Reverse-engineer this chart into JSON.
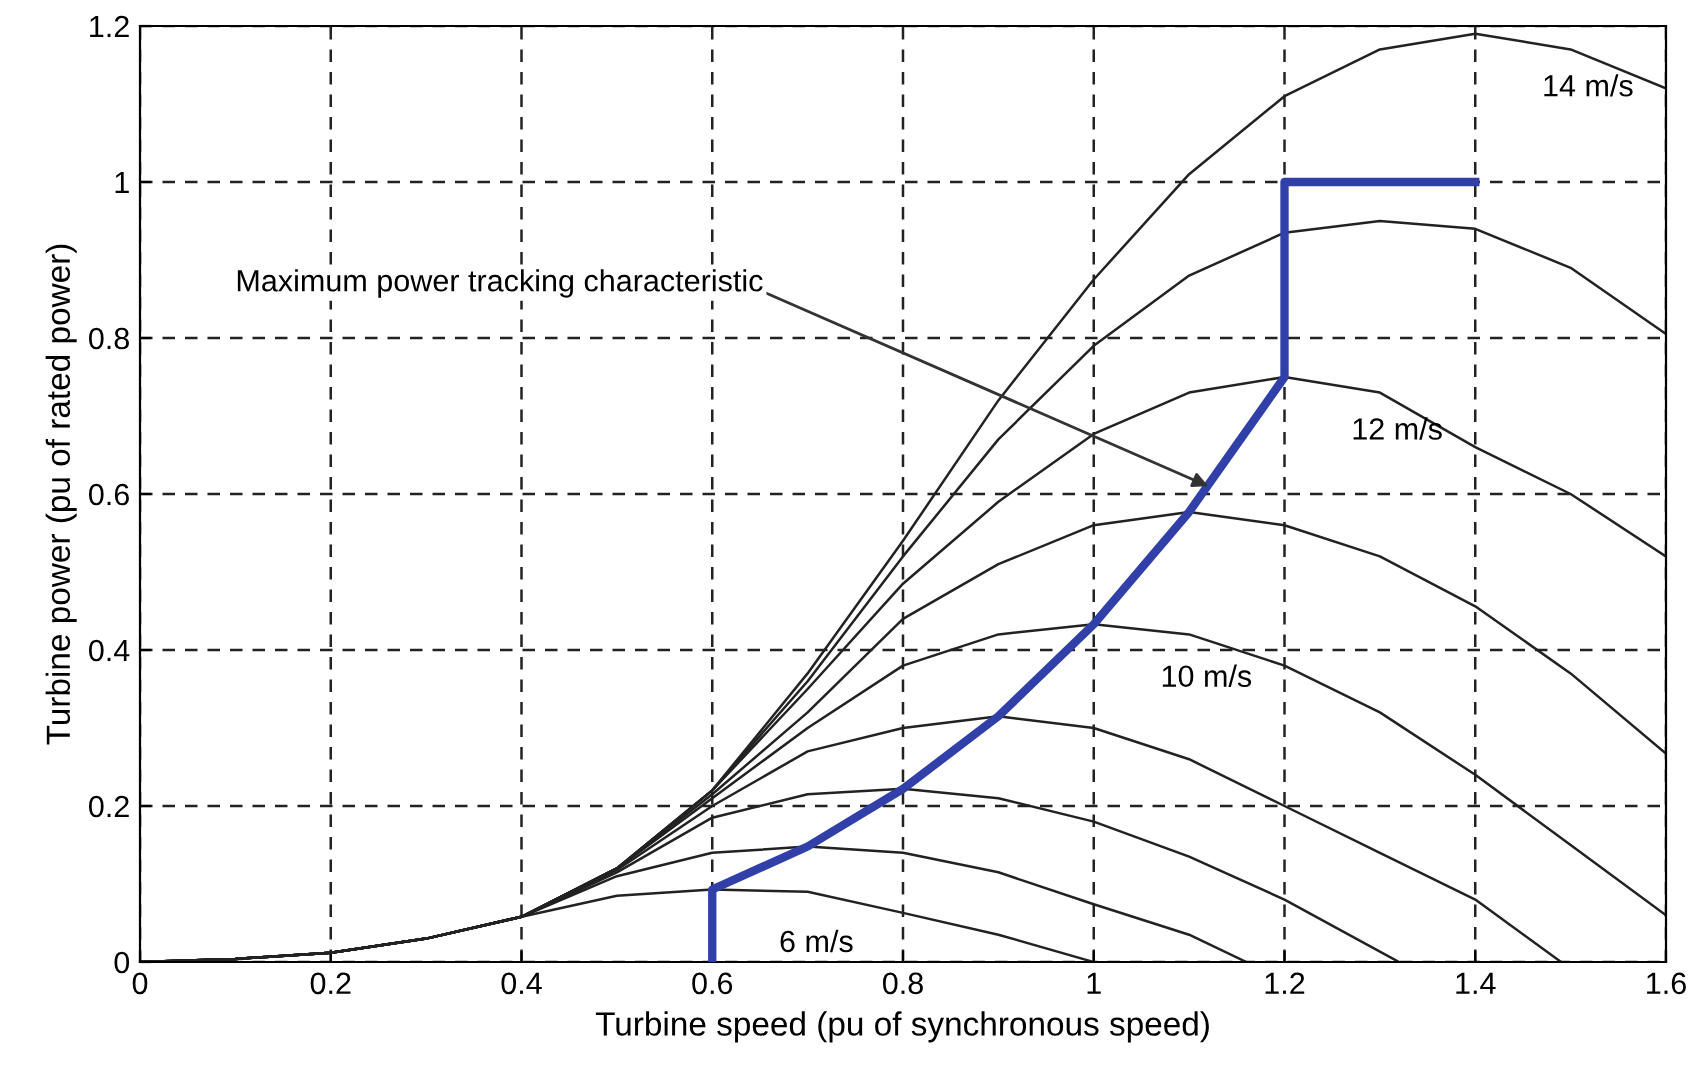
{
  "chart_data": {
    "type": "line",
    "xlabel": "Turbine speed (pu of synchronous speed)",
    "ylabel": "Turbine power (pu of rated power)",
    "xlim": [
      0,
      1.6
    ],
    "ylim": [
      0,
      1.2
    ],
    "xticks": [
      0,
      0.2,
      0.4,
      0.6,
      0.8,
      1,
      1.2,
      1.4,
      1.6
    ],
    "yticks": [
      0,
      0.2,
      0.4,
      0.6,
      0.8,
      1,
      1.2
    ],
    "grid": true,
    "marker": "none",
    "line_style": "solid",
    "series": [
      {
        "name": "6 m/s",
        "color": "#222222",
        "x": [
          0,
          0.1,
          0.2,
          0.3,
          0.4,
          0.5,
          0.6,
          0.7,
          0.8,
          0.9,
          1.0
        ],
        "values": [
          0,
          0.004,
          0.012,
          0.03,
          0.058,
          0.085,
          0.093,
          0.09,
          0.063,
          0.035,
          0
        ]
      },
      {
        "color": "#222222",
        "x": [
          0,
          0.1,
          0.2,
          0.3,
          0.4,
          0.5,
          0.6,
          0.7,
          0.8,
          0.9,
          1.0,
          1.1,
          1.16
        ],
        "values": [
          0,
          0.004,
          0.012,
          0.03,
          0.058,
          0.11,
          0.14,
          0.148,
          0.14,
          0.115,
          0.074,
          0.035,
          0
        ]
      },
      {
        "color": "#222222",
        "x": [
          0,
          0.1,
          0.2,
          0.3,
          0.4,
          0.5,
          0.6,
          0.7,
          0.8,
          0.9,
          1.0,
          1.1,
          1.2,
          1.32
        ],
        "values": [
          0,
          0.004,
          0.012,
          0.03,
          0.058,
          0.115,
          0.185,
          0.215,
          0.222,
          0.21,
          0.18,
          0.135,
          0.08,
          0
        ]
      },
      {
        "color": "#222222",
        "x": [
          0,
          0.1,
          0.2,
          0.3,
          0.4,
          0.5,
          0.6,
          0.7,
          0.8,
          0.9,
          1.0,
          1.1,
          1.2,
          1.3,
          1.4,
          1.49
        ],
        "values": [
          0,
          0.004,
          0.012,
          0.03,
          0.058,
          0.118,
          0.2,
          0.27,
          0.3,
          0.315,
          0.3,
          0.26,
          0.2,
          0.14,
          0.08,
          0
        ]
      },
      {
        "name": "10 m/s",
        "color": "#222222",
        "x": [
          0,
          0.1,
          0.2,
          0.3,
          0.4,
          0.5,
          0.6,
          0.7,
          0.8,
          0.9,
          1.0,
          1.1,
          1.2,
          1.3,
          1.4,
          1.5,
          1.6
        ],
        "values": [
          0,
          0.004,
          0.012,
          0.03,
          0.058,
          0.12,
          0.21,
          0.3,
          0.38,
          0.42,
          0.433,
          0.42,
          0.38,
          0.32,
          0.24,
          0.15,
          0.06
        ]
      },
      {
        "color": "#222222",
        "x": [
          0,
          0.1,
          0.2,
          0.3,
          0.4,
          0.5,
          0.6,
          0.7,
          0.8,
          0.9,
          1.0,
          1.1,
          1.2,
          1.3,
          1.4,
          1.5,
          1.6
        ],
        "values": [
          0,
          0.004,
          0.012,
          0.03,
          0.058,
          0.12,
          0.215,
          0.32,
          0.44,
          0.51,
          0.56,
          0.577,
          0.56,
          0.52,
          0.456,
          0.37,
          0.267
        ]
      },
      {
        "name": "12 m/s",
        "color": "#222222",
        "x": [
          0,
          0.1,
          0.2,
          0.3,
          0.4,
          0.5,
          0.6,
          0.7,
          0.8,
          0.9,
          1.0,
          1.1,
          1.2,
          1.3,
          1.4,
          1.5,
          1.6
        ],
        "values": [
          0,
          0.004,
          0.012,
          0.03,
          0.058,
          0.12,
          0.22,
          0.35,
          0.485,
          0.59,
          0.677,
          0.73,
          0.75,
          0.73,
          0.66,
          0.6,
          0.52
        ]
      },
      {
        "color": "#222222",
        "x": [
          0,
          0.1,
          0.2,
          0.3,
          0.4,
          0.5,
          0.6,
          0.7,
          0.8,
          0.9,
          1.0,
          1.1,
          1.2,
          1.3,
          1.4,
          1.5,
          1.6
        ],
        "values": [
          0,
          0.004,
          0.012,
          0.03,
          0.058,
          0.12,
          0.22,
          0.36,
          0.52,
          0.67,
          0.79,
          0.88,
          0.935,
          0.95,
          0.94,
          0.89,
          0.805
        ]
      },
      {
        "name": "14 m/s",
        "color": "#222222",
        "x": [
          0,
          0.1,
          0.2,
          0.3,
          0.4,
          0.5,
          0.6,
          0.7,
          0.8,
          0.9,
          1.0,
          1.1,
          1.2,
          1.3,
          1.4,
          1.5,
          1.6
        ],
        "values": [
          0,
          0.004,
          0.012,
          0.03,
          0.058,
          0.12,
          0.22,
          0.37,
          0.54,
          0.72,
          0.875,
          1.01,
          1.11,
          1.17,
          1.19,
          1.17,
          1.12
        ]
      },
      {
        "color": "#3040a8",
        "x": [
          0.6,
          0.6,
          0.7,
          0.8,
          0.9,
          1.0,
          1.1,
          1.2,
          1.2,
          1.4
        ],
        "values": [
          0,
          0.093,
          0.148,
          0.222,
          0.315,
          0.433,
          0.577,
          0.75,
          1.0,
          1.0
        ]
      }
    ],
    "annotations": [
      {
        "text": "Maximum power tracking characteristic",
        "x": 1.12,
        "y": 0.61
      }
    ]
  }
}
